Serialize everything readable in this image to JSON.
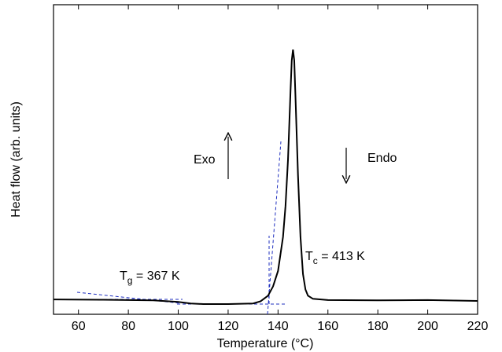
{
  "chart_data": {
    "type": "line",
    "x_label": "Temperature (°C)",
    "y_label": "Heat flow (arb. units)",
    "xlim": [
      50,
      220
    ],
    "xticks": [
      60,
      80,
      100,
      120,
      140,
      160,
      180,
      200,
      220
    ],
    "ylim": [
      0,
      100
    ],
    "color": "#000000",
    "x": [
      50,
      70,
      90,
      100,
      105,
      110,
      120,
      130,
      133,
      136,
      138,
      140,
      142,
      143,
      144,
      145,
      145.5,
      146,
      146.5,
      147,
      148,
      149,
      150,
      151,
      152,
      154,
      160,
      180,
      200,
      220
    ],
    "values": [
      4.8,
      4.7,
      4.5,
      4.0,
      3.5,
      3.3,
      3.3,
      3.5,
      4.2,
      6,
      9,
      14,
      25,
      35,
      50,
      72,
      82,
      85.5,
      82,
      70,
      45,
      25,
      13,
      8,
      6,
      5,
      4.6,
      4.5,
      4.6,
      4.3
    ],
    "annotations": [
      {
        "main": "Exo"
      },
      {
        "main": "Endo"
      },
      {
        "main": "T",
        "sub": "g",
        "rest": " = 367 K"
      },
      {
        "main": "T",
        "sub": "c",
        "rest": " = 413 K"
      }
    ]
  }
}
